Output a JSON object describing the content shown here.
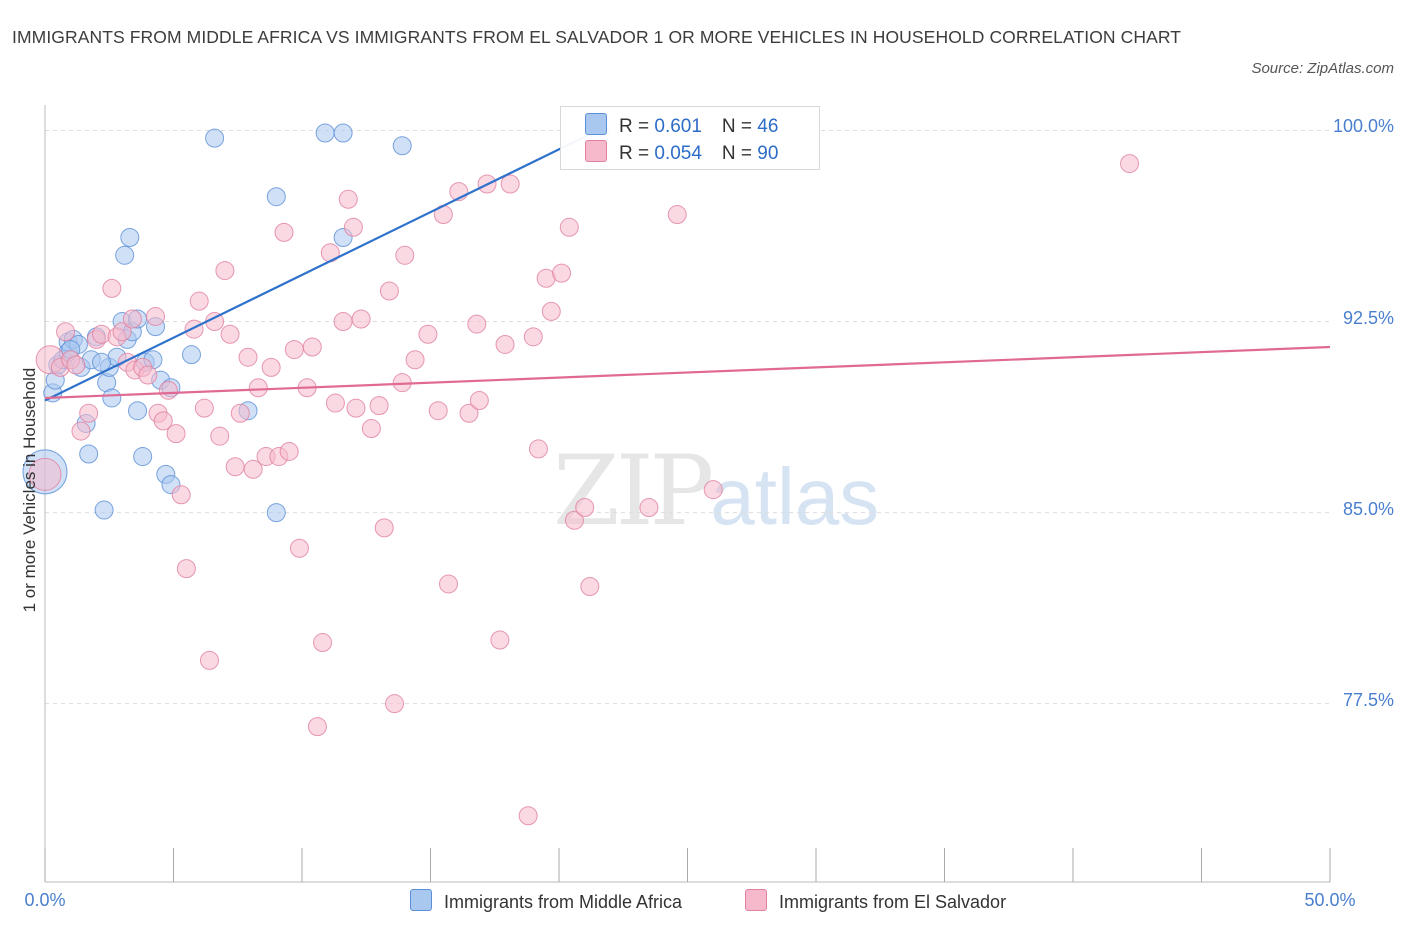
{
  "title": "IMMIGRANTS FROM MIDDLE AFRICA VS IMMIGRANTS FROM EL SALVADOR 1 OR MORE VEHICLES IN HOUSEHOLD CORRELATION CHART",
  "source": "Source: ZipAtlas.com",
  "watermark": {
    "zip": "ZIP",
    "atlas": "atlas"
  },
  "legend_stats": [
    {
      "r_label": "R = ",
      "r_value": "0.601",
      "n_label": "N = ",
      "n_value": "46"
    },
    {
      "r_label": "R = ",
      "r_value": "0.054",
      "n_label": "N = ",
      "n_value": "90"
    }
  ],
  "colors": {
    "blue_fill": "#a9c8f0",
    "blue_stroke": "#5b8fd6",
    "blue_line": "#2f72cc",
    "pink_fill": "#f6b9cc",
    "pink_stroke": "#e07fa0",
    "pink_line": "#e06a94",
    "grid": "#dddddd",
    "tick_label": "#4a7fcf"
  },
  "chart_data": {
    "type": "scatter",
    "title": "IMMIGRANTS FROM MIDDLE AFRICA VS IMMIGRANTS FROM EL SALVADOR 1 OR MORE VEHICLES IN HOUSEHOLD CORRELATION CHART",
    "xlabel": "",
    "ylabel": "1 or more Vehicles in Household",
    "xlim": [
      0,
      50
    ],
    "ylim": [
      70.5,
      101.0
    ],
    "x_tick_labels": [
      {
        "value": 0,
        "label": "0.0%"
      },
      {
        "value": 50,
        "label": "50.0%"
      }
    ],
    "x_minor_ticks": [
      0,
      5,
      10,
      15,
      20,
      25,
      30,
      35,
      40,
      45,
      50
    ],
    "y_tick_labels": [
      {
        "value": 100.0,
        "label": "100.0%"
      },
      {
        "value": 92.5,
        "label": "92.5%"
      },
      {
        "value": 85.0,
        "label": "85.0%"
      },
      {
        "value": 77.5,
        "label": "77.5%"
      }
    ],
    "grid": true,
    "legend_position": "bottom",
    "series": [
      {
        "name": "Immigrants from Middle Africa",
        "color": "#a9c8f0",
        "trend": {
          "x": [
            0.0,
            21.5
          ],
          "y": [
            89.4,
            100.0
          ]
        },
        "points": [
          [
            0.0,
            86.6,
            22
          ],
          [
            0.3,
            89.7,
            9
          ],
          [
            0.4,
            90.2,
            9
          ],
          [
            0.5,
            90.8,
            9
          ],
          [
            0.7,
            91.0,
            9
          ],
          [
            0.9,
            91.3,
            9
          ],
          [
            0.9,
            91.7,
            9
          ],
          [
            1.1,
            91.8,
            9
          ],
          [
            1.3,
            91.6,
            9
          ],
          [
            1.4,
            90.7,
            9
          ],
          [
            1.6,
            88.5,
            9
          ],
          [
            1.7,
            87.3,
            9
          ],
          [
            1.8,
            91.0,
            9
          ],
          [
            2.0,
            91.9,
            9
          ],
          [
            2.3,
            85.1,
            9
          ],
          [
            2.4,
            90.1,
            9
          ],
          [
            2.5,
            90.7,
            9
          ],
          [
            2.6,
            89.5,
            9
          ],
          [
            2.8,
            91.1,
            9
          ],
          [
            3.0,
            92.5,
            9
          ],
          [
            3.1,
            95.1,
            9
          ],
          [
            3.2,
            91.8,
            9
          ],
          [
            3.3,
            95.8,
            9
          ],
          [
            3.4,
            92.1,
            9
          ],
          [
            3.6,
            92.6,
            9
          ],
          [
            3.6,
            89.0,
            9
          ],
          [
            3.8,
            87.2,
            9
          ],
          [
            3.9,
            90.9,
            9
          ],
          [
            4.2,
            91.0,
            9
          ],
          [
            4.3,
            92.3,
            9
          ],
          [
            4.5,
            90.2,
            9
          ],
          [
            4.7,
            86.5,
            9
          ],
          [
            4.9,
            86.1,
            9
          ],
          [
            4.9,
            89.9,
            9
          ],
          [
            5.7,
            91.2,
            9
          ],
          [
            6.6,
            99.7,
            9
          ],
          [
            7.9,
            89.0,
            9
          ],
          [
            9.0,
            97.4,
            9
          ],
          [
            9.0,
            85.0,
            9
          ],
          [
            10.9,
            99.9,
            9
          ],
          [
            11.6,
            95.8,
            9
          ],
          [
            11.6,
            99.9,
            9
          ],
          [
            13.9,
            99.4,
            9
          ],
          [
            21.6,
            99.9,
            9
          ],
          [
            1.0,
            91.4,
            9
          ],
          [
            2.2,
            90.9,
            9
          ]
        ]
      },
      {
        "name": "Immigrants from El Salvador",
        "color": "#f6b9cc",
        "trend": {
          "x": [
            0.0,
            50.0
          ],
          "y": [
            89.5,
            91.5
          ]
        },
        "points": [
          [
            0.0,
            86.5,
            16
          ],
          [
            0.2,
            91.0,
            14
          ],
          [
            0.6,
            90.7,
            9
          ],
          [
            0.8,
            92.1,
            9
          ],
          [
            1.0,
            91.0,
            9
          ],
          [
            1.2,
            90.8,
            9
          ],
          [
            1.4,
            88.2,
            9
          ],
          [
            1.7,
            88.9,
            9
          ],
          [
            2.0,
            91.8,
            9
          ],
          [
            2.2,
            92.0,
            9
          ],
          [
            2.6,
            93.8,
            9
          ],
          [
            2.8,
            91.9,
            9
          ],
          [
            3.0,
            92.1,
            9
          ],
          [
            3.2,
            90.9,
            9
          ],
          [
            3.4,
            92.6,
            9
          ],
          [
            3.5,
            90.6,
            9
          ],
          [
            3.8,
            90.7,
            9
          ],
          [
            4.0,
            90.4,
            9
          ],
          [
            4.3,
            92.7,
            9
          ],
          [
            4.4,
            88.9,
            9
          ],
          [
            4.6,
            88.6,
            9
          ],
          [
            4.8,
            89.8,
            9
          ],
          [
            5.1,
            88.1,
            9
          ],
          [
            5.3,
            85.7,
            9
          ],
          [
            5.5,
            82.8,
            9
          ],
          [
            5.8,
            92.2,
            9
          ],
          [
            6.0,
            93.3,
            9
          ],
          [
            6.2,
            89.1,
            9
          ],
          [
            6.4,
            79.2,
            9
          ],
          [
            6.6,
            92.5,
            9
          ],
          [
            6.8,
            88.0,
            9
          ],
          [
            7.0,
            94.5,
            9
          ],
          [
            7.2,
            92.0,
            9
          ],
          [
            7.4,
            86.8,
            9
          ],
          [
            7.6,
            88.9,
            9
          ],
          [
            7.9,
            91.1,
            9
          ],
          [
            8.1,
            86.7,
            9
          ],
          [
            8.3,
            89.9,
            9
          ],
          [
            8.6,
            87.2,
            9
          ],
          [
            8.8,
            90.7,
            9
          ],
          [
            9.1,
            87.2,
            9
          ],
          [
            9.3,
            96.0,
            9
          ],
          [
            9.5,
            87.4,
            9
          ],
          [
            9.7,
            91.4,
            9
          ],
          [
            9.9,
            83.6,
            9
          ],
          [
            10.2,
            89.9,
            9
          ],
          [
            10.4,
            91.5,
            9
          ],
          [
            10.6,
            76.6,
            9
          ],
          [
            10.8,
            79.9,
            9
          ],
          [
            11.1,
            95.2,
            9
          ],
          [
            11.3,
            89.3,
            9
          ],
          [
            11.6,
            92.5,
            9
          ],
          [
            11.8,
            97.3,
            9
          ],
          [
            12.0,
            96.2,
            9
          ],
          [
            12.1,
            89.1,
            9
          ],
          [
            12.3,
            92.6,
            9
          ],
          [
            12.7,
            88.3,
            9
          ],
          [
            13.0,
            89.2,
            9
          ],
          [
            13.2,
            84.4,
            9
          ],
          [
            13.4,
            93.7,
            9
          ],
          [
            13.6,
            77.5,
            9
          ],
          [
            13.9,
            90.1,
            9
          ],
          [
            14.0,
            95.1,
            9
          ],
          [
            14.4,
            91.0,
            9
          ],
          [
            14.9,
            92.0,
            9
          ],
          [
            15.3,
            89.0,
            9
          ],
          [
            15.5,
            96.7,
            9
          ],
          [
            15.7,
            82.2,
            9
          ],
          [
            16.1,
            97.6,
            9
          ],
          [
            16.5,
            88.9,
            9
          ],
          [
            16.8,
            92.4,
            9
          ],
          [
            16.9,
            89.4,
            9
          ],
          [
            17.2,
            97.9,
            9
          ],
          [
            17.7,
            80.0,
            9
          ],
          [
            17.9,
            91.6,
            9
          ],
          [
            18.1,
            97.9,
            9
          ],
          [
            18.8,
            73.1,
            9
          ],
          [
            19.0,
            91.9,
            9
          ],
          [
            19.2,
            87.5,
            9
          ],
          [
            19.5,
            94.2,
            9
          ],
          [
            19.7,
            92.9,
            9
          ],
          [
            20.1,
            94.4,
            9
          ],
          [
            20.4,
            96.2,
            9
          ],
          [
            20.6,
            84.7,
            9
          ],
          [
            21.0,
            85.2,
            9
          ],
          [
            21.2,
            82.1,
            9
          ],
          [
            23.5,
            85.2,
            9
          ],
          [
            24.6,
            96.7,
            9
          ],
          [
            26.0,
            85.9,
            9
          ],
          [
            42.2,
            98.7,
            9
          ]
        ]
      }
    ]
  }
}
